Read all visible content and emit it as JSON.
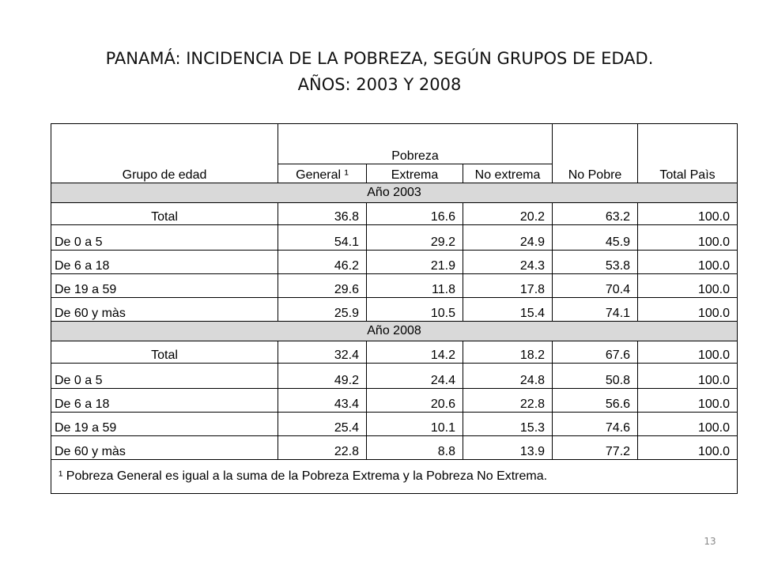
{
  "title": {
    "line1": "PANAMÁ: INCIDENCIA DE LA POBREZA, SEGÚN GRUPOS DE EDAD.",
    "line2": "AÑOS: 2003 Y 2008"
  },
  "table": {
    "headers": {
      "group": "Grupo de edad",
      "pobreza": "Pobreza",
      "general": "General ¹",
      "extrema": "Extrema",
      "no_extrema": "No extrema",
      "no_pobre": "No Pobre",
      "total_pais": "Total Paìs"
    },
    "sections": [
      {
        "title": "Año 2003",
        "rows": [
          [
            "Total",
            "36.8",
            "16.6",
            "20.2",
            "63.2",
            "100.0"
          ],
          [
            "De 0 a 5",
            "54.1",
            "29.2",
            "24.9",
            "45.9",
            "100.0"
          ],
          [
            "De 6 a 18",
            "46.2",
            "21.9",
            "24.3",
            "53.8",
            "100.0"
          ],
          [
            "De 19 a 59",
            "29.6",
            "11.8",
            "17.8",
            "70.4",
            "100.0"
          ],
          [
            "De 60 y màs",
            "25.9",
            "10.5",
            "15.4",
            "74.1",
            "100.0"
          ]
        ]
      },
      {
        "title": "Año 2008",
        "rows": [
          [
            "Total",
            "32.4",
            "14.2",
            "18.2",
            "67.6",
            "100.0"
          ],
          [
            "De 0 a 5",
            "49.2",
            "24.4",
            "24.8",
            "50.8",
            "100.0"
          ],
          [
            "De 6 a 18",
            "43.4",
            "20.6",
            "22.8",
            "56.6",
            "100.0"
          ],
          [
            "De 19 a 59",
            "25.4",
            "10.1",
            "15.3",
            "74.6",
            "100.0"
          ],
          [
            "De 60 y màs",
            "22.8",
            "8.8",
            "13.9",
            "77.2",
            "100.0"
          ]
        ]
      }
    ],
    "footnote": "¹ Pobreza General es igual a la suma de la Pobreza Extrema y la Pobreza No Extrema."
  },
  "page_number": "13",
  "colors": {
    "section_band": "#d9d9d9",
    "border": "#000000",
    "page_number_text": "#888888"
  }
}
